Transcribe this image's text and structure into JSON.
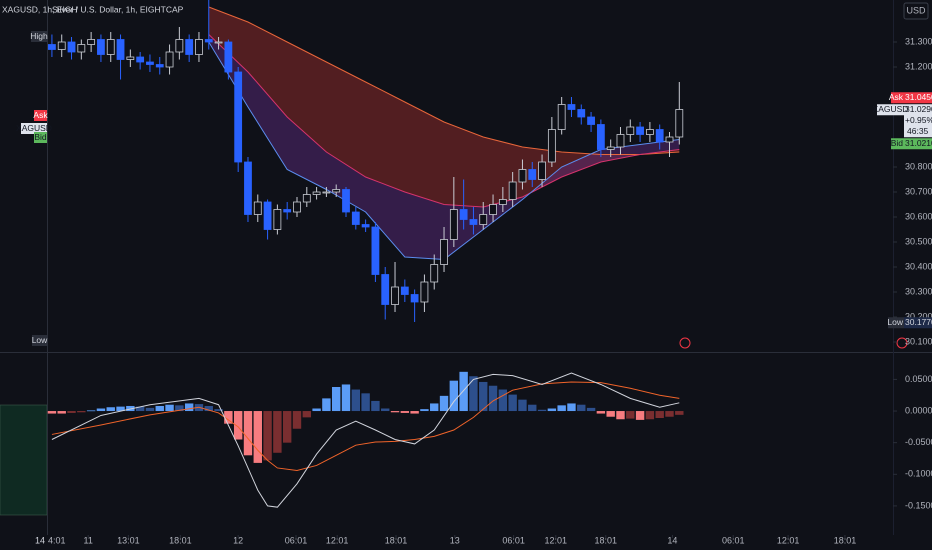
{
  "header": {
    "side_title": "XAGUSD, 1h, EIGH",
    "title": "Silver / U.S. Dollar, 1h, EIGHTCAP",
    "currency": "USD"
  },
  "side_panel": {
    "labels": [
      "High",
      "Ask",
      "XAGUSD",
      "Bid",
      "Low"
    ],
    "x_labels": [
      "14",
      "4:01"
    ]
  },
  "chart_data": [
    {
      "type": "candlestick",
      "x": [
        0,
        1,
        2,
        3,
        4,
        5,
        6,
        7,
        8,
        9,
        10,
        11,
        12,
        13,
        14,
        15,
        16,
        17,
        18,
        19,
        20,
        21,
        22,
        23,
        24,
        25,
        26,
        27,
        28,
        29,
        30,
        31,
        32,
        33,
        34,
        35,
        36,
        37,
        38,
        39,
        40,
        41,
        42,
        43,
        44,
        45,
        46,
        47,
        48,
        49,
        50,
        51,
        52,
        53,
        54,
        55,
        56,
        57,
        58,
        59,
        60,
        61,
        62,
        63,
        64
      ],
      "open": [
        31.29,
        31.27,
        31.3,
        31.26,
        31.29,
        31.31,
        31.25,
        31.31,
        31.23,
        31.24,
        31.22,
        31.21,
        31.2,
        31.26,
        31.31,
        31.25,
        31.31,
        31.3,
        31.3,
        31.18,
        30.82,
        30.61,
        30.66,
        30.55,
        30.63,
        30.62,
        30.66,
        30.69,
        30.7,
        30.7,
        30.71,
        30.62,
        30.57,
        30.56,
        30.37,
        30.25,
        30.32,
        30.29,
        30.26,
        30.34,
        30.41,
        30.51,
        30.63,
        30.59,
        30.57,
        30.61,
        30.65,
        30.67,
        30.74,
        30.79,
        30.75,
        30.82,
        30.95,
        31.05,
        31.03,
        31.0,
        30.97,
        30.87,
        30.88,
        30.93,
        30.96,
        30.93,
        30.95,
        30.9,
        30.92
      ],
      "high": [
        31.33,
        31.33,
        31.32,
        31.31,
        31.34,
        31.33,
        31.34,
        31.33,
        31.27,
        31.26,
        31.25,
        31.24,
        31.29,
        31.36,
        31.33,
        31.34,
        31.47,
        31.32,
        31.31,
        31.2,
        30.84,
        30.69,
        30.67,
        30.65,
        30.66,
        30.68,
        30.72,
        30.72,
        30.72,
        30.73,
        30.72,
        30.64,
        30.59,
        30.58,
        30.4,
        30.42,
        30.35,
        30.31,
        30.37,
        30.45,
        30.56,
        30.76,
        30.75,
        30.64,
        30.66,
        30.69,
        30.72,
        30.78,
        30.83,
        30.82,
        30.85,
        31.0,
        31.08,
        31.08,
        31.05,
        31.02,
        30.99,
        30.91,
        30.96,
        30.99,
        30.98,
        30.98,
        30.97,
        30.94,
        31.14
      ],
      "low": [
        31.24,
        31.24,
        31.23,
        31.23,
        31.26,
        31.22,
        31.22,
        31.15,
        31.2,
        31.19,
        31.18,
        31.17,
        31.17,
        31.23,
        31.22,
        31.22,
        31.27,
        31.27,
        31.15,
        30.78,
        30.58,
        30.58,
        30.51,
        30.53,
        30.59,
        30.6,
        30.64,
        30.67,
        30.68,
        30.68,
        30.6,
        30.55,
        30.54,
        30.34,
        30.19,
        30.22,
        30.26,
        30.18,
        30.22,
        30.31,
        30.38,
        30.48,
        30.55,
        30.53,
        30.55,
        30.58,
        30.62,
        30.64,
        30.71,
        30.72,
        30.72,
        30.8,
        30.93,
        31.0,
        30.97,
        30.94,
        30.84,
        30.84,
        30.85,
        30.9,
        30.9,
        30.9,
        30.87,
        30.84,
        30.89
      ],
      "close": [
        31.27,
        31.3,
        31.26,
        31.29,
        31.31,
        31.25,
        31.31,
        31.23,
        31.24,
        31.22,
        31.21,
        31.2,
        31.26,
        31.31,
        31.25,
        31.31,
        31.3,
        31.3,
        31.18,
        30.82,
        30.61,
        30.66,
        30.55,
        30.63,
        30.62,
        30.66,
        30.69,
        30.7,
        30.7,
        30.71,
        30.62,
        30.57,
        30.56,
        30.37,
        30.25,
        30.32,
        30.29,
        30.26,
        30.34,
        30.41,
        30.51,
        30.63,
        30.59,
        30.57,
        30.61,
        30.65,
        30.67,
        30.74,
        30.79,
        30.75,
        30.82,
        30.95,
        31.05,
        31.03,
        31.0,
        30.97,
        30.87,
        30.88,
        30.93,
        30.96,
        30.93,
        30.95,
        30.9,
        30.92,
        31.03
      ],
      "up_color": "#c9ccd4",
      "down_color": "#2962ff",
      "grid": false,
      "xlim": [
        -0.4,
        85.8
      ],
      "ylim": [
        30.06,
        31.468
      ],
      "xticks": [
        {
          "value": 3.7,
          "label": "11"
        },
        {
          "value": 7.8,
          "label": "13:01"
        },
        {
          "value": 13.1,
          "label": "18:01"
        },
        {
          "value": 19.0,
          "label": "12"
        },
        {
          "value": 24.9,
          "label": "06:01"
        },
        {
          "value": 29.1,
          "label": "12:01"
        },
        {
          "value": 35.1,
          "label": "18:01"
        },
        {
          "value": 41.1,
          "label": "13"
        },
        {
          "value": 47.1,
          "label": "06:01"
        },
        {
          "value": 51.4,
          "label": "12:01"
        },
        {
          "value": 56.5,
          "label": "18:01"
        },
        {
          "value": 63.3,
          "label": "14"
        },
        {
          "value": 69.5,
          "label": "06:01"
        },
        {
          "value": 75.1,
          "label": "12:01"
        },
        {
          "value": 80.9,
          "label": "18:01"
        }
      ],
      "yticks": [
        {
          "value": 31.3,
          "label": "31.3000"
        },
        {
          "value": 31.2,
          "label": "31.2000"
        },
        {
          "value": 30.8,
          "label": "30.8000"
        },
        {
          "value": 30.7,
          "label": "30.7000"
        },
        {
          "value": 30.6,
          "label": "30.6000"
        },
        {
          "value": 30.5,
          "label": "30.5000"
        },
        {
          "value": 30.4,
          "label": "30.4000"
        },
        {
          "value": 30.3,
          "label": "30.3000"
        },
        {
          "value": 30.2,
          "label": "30.2000"
        },
        {
          "value": 30.1,
          "label": "30.1000"
        }
      ],
      "bands": {
        "x": [
          16,
          20,
          24,
          28,
          32,
          36,
          40,
          44,
          48,
          52,
          56,
          60,
          64
        ],
        "slow": [
          31.44,
          31.38,
          31.3,
          31.22,
          31.14,
          31.06,
          30.98,
          30.92,
          30.88,
          30.86,
          30.85,
          30.85,
          30.86
        ],
        "mid": [
          31.33,
          31.18,
          31.0,
          30.86,
          30.76,
          30.7,
          30.65,
          30.64,
          30.68,
          30.76,
          30.82,
          30.85,
          30.87
        ],
        "fast": [
          31.3,
          31.04,
          30.79,
          30.71,
          30.62,
          30.44,
          30.43,
          30.55,
          30.67,
          30.8,
          30.87,
          30.89,
          30.91
        ],
        "colors": {
          "slow": "#e8663a",
          "mid": "#d6336c",
          "fast": "#5b8def",
          "outer_fill": "#8b2a2a",
          "inner_fill": "#5a2a7a"
        }
      },
      "price_tags": {
        "ask": {
          "label": "Ask",
          "value": 31.045,
          "value_label": "31.0450",
          "color": "#f23645"
        },
        "last": {
          "label": "XAGUSD",
          "value": 31.029,
          "value_label": "31.0290",
          "change": "+0.95%",
          "countdown": "46:35",
          "color": "#dfe3ec"
        },
        "bid": {
          "label": "Bid",
          "value": 31.021,
          "value_label": "31.0210",
          "color": "#5cb85c"
        },
        "low": {
          "label": "Low",
          "value": 30.177,
          "value_label": "30.1770",
          "color": "#1e2a48"
        }
      }
    },
    {
      "type": "macd",
      "x": [
        0,
        1,
        2,
        3,
        4,
        5,
        6,
        7,
        8,
        9,
        10,
        11,
        12,
        13,
        14,
        15,
        16,
        17,
        18,
        19,
        20,
        21,
        22,
        23,
        24,
        25,
        26,
        27,
        28,
        29,
        30,
        31,
        32,
        33,
        34,
        35,
        36,
        37,
        38,
        39,
        40,
        41,
        42,
        43,
        44,
        45,
        46,
        47,
        48,
        49,
        50,
        51,
        52,
        53,
        54,
        55,
        56,
        57,
        58,
        59,
        60,
        61,
        62,
        63,
        64
      ],
      "histogram": [
        -0.004,
        -0.004,
        -0.003,
        -0.002,
        0.001,
        0.004,
        0.006,
        0.007,
        0.008,
        0.007,
        0.005,
        0.008,
        0.01,
        0.009,
        0.012,
        0.011,
        0.008,
        0.003,
        -0.02,
        -0.045,
        -0.07,
        -0.082,
        -0.078,
        -0.066,
        -0.05,
        -0.028,
        -0.01,
        0.004,
        0.02,
        0.038,
        0.042,
        0.034,
        0.028,
        0.016,
        0.004,
        -0.002,
        -0.003,
        -0.004,
        0.003,
        0.012,
        0.024,
        0.048,
        0.062,
        0.055,
        0.046,
        0.04,
        0.034,
        0.026,
        0.018,
        0.01,
        0.002,
        0.004,
        0.009,
        0.012,
        0.01,
        0.005,
        -0.004,
        -0.009,
        -0.013,
        -0.012,
        -0.014,
        -0.013,
        -0.011,
        -0.009,
        -0.006
      ],
      "line_x": [
        0,
        5,
        10,
        15,
        17,
        19,
        21,
        22,
        23,
        25,
        27,
        29,
        31,
        33,
        35,
        37,
        39,
        41,
        43,
        45,
        47,
        50,
        53,
        56,
        59,
        62,
        64
      ],
      "macd": [
        -0.045,
        -0.007,
        0.01,
        0.02,
        0.01,
        -0.055,
        -0.125,
        -0.15,
        -0.152,
        -0.115,
        -0.068,
        -0.03,
        -0.016,
        -0.03,
        -0.045,
        -0.052,
        -0.03,
        0.015,
        0.05,
        0.058,
        0.056,
        0.042,
        0.06,
        0.042,
        0.02,
        0.006,
        0.013
      ],
      "signal": [
        -0.037,
        -0.022,
        -0.006,
        0.006,
        -0.003,
        -0.025,
        -0.062,
        -0.078,
        -0.09,
        -0.094,
        -0.086,
        -0.07,
        -0.054,
        -0.049,
        -0.048,
        -0.045,
        -0.04,
        -0.03,
        -0.01,
        0.016,
        0.033,
        0.043,
        0.046,
        0.045,
        0.036,
        0.025,
        0.02
      ],
      "xlim": [
        -0.4,
        85.8
      ],
      "ylim": [
        -0.196,
        0.0886
      ],
      "yticks": [
        {
          "value": 0.05,
          "label": "0.0500"
        },
        {
          "value": 0,
          "label": "0.0000"
        },
        {
          "value": -0.05,
          "label": "-0.0500"
        },
        {
          "value": -0.1,
          "label": "-0.1000"
        },
        {
          "value": -0.15,
          "label": "-0.1500"
        }
      ],
      "colors": {
        "macd": "#d1d4dc",
        "signal": "#f0642a",
        "pos_up": "#5b9cf6",
        "pos_down": "#2d4f8c",
        "neg_down": "#f77c80",
        "neg_up": "#7a2e30"
      }
    }
  ]
}
